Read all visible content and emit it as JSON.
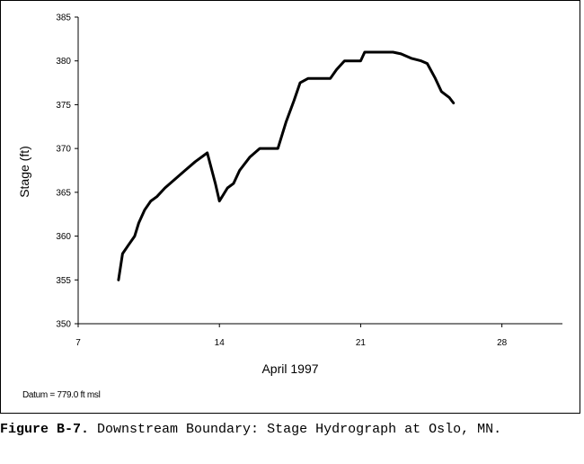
{
  "chart_data": {
    "type": "line",
    "title": "",
    "xlabel": "April 1997",
    "ylabel": "Stage (ft)",
    "xlim": [
      7,
      31
    ],
    "ylim": [
      35.0,
      38.5
    ],
    "x_ticks": [
      7,
      14,
      21,
      28
    ],
    "y_ticks": [
      35.0,
      35.5,
      36.0,
      36.5,
      37.0,
      37.5,
      38.0,
      38.5
    ],
    "y_tick_labels": [
      "350",
      "355",
      "360",
      "365",
      "370",
      "375",
      "380",
      "385"
    ],
    "grid": false,
    "legend": "none",
    "line_color": "#000000",
    "series": [
      {
        "x": [
          9.0,
          9.2,
          9.5,
          9.8,
          10.0,
          10.3,
          10.6,
          10.9,
          11.3,
          11.8,
          12.3,
          12.8,
          13.4,
          13.8,
          14.0,
          14.4,
          14.7,
          15.0,
          15.5,
          16.0,
          16.5,
          16.9,
          17.3,
          17.7,
          18.0,
          18.4,
          19.0,
          19.5,
          19.8,
          20.2,
          20.6,
          21.0,
          21.2,
          22.0,
          22.6,
          23.0,
          23.5,
          24.0,
          24.3,
          24.7,
          25.0,
          25.4,
          25.6
        ],
        "y": [
          35.5,
          35.8,
          35.9,
          36.0,
          36.15,
          36.3,
          36.4,
          36.45,
          36.55,
          36.65,
          36.75,
          36.85,
          36.95,
          36.6,
          36.4,
          36.55,
          36.6,
          36.75,
          36.9,
          37.0,
          37.0,
          37.0,
          37.3,
          37.55,
          37.75,
          37.8,
          37.8,
          37.8,
          37.9,
          38.0,
          38.0,
          38.0,
          38.1,
          38.1,
          38.1,
          38.08,
          38.03,
          38.0,
          37.97,
          37.8,
          37.65,
          37.58,
          37.52
        ]
      }
    ]
  },
  "datum_note": "Datum = 779.0 ft msl",
  "caption": {
    "label": "Figure B-7.",
    "text": " Downstream Boundary: Stage Hydrograph at Oslo, MN."
  }
}
